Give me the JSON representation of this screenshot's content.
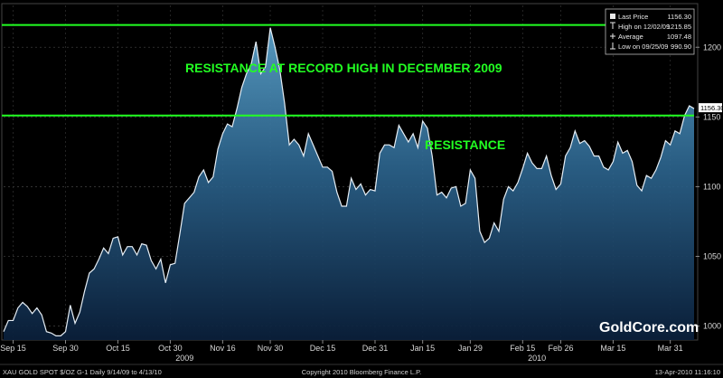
{
  "chart_data": {
    "type": "area",
    "ylim": [
      990,
      1230
    ],
    "yticks": [
      1000,
      1050,
      1100,
      1150,
      1200
    ],
    "x_ticks": [
      {
        "label": "Sep 15",
        "i": 2
      },
      {
        "label": "Sep 30",
        "i": 13
      },
      {
        "label": "Oct 15",
        "i": 24
      },
      {
        "label": "Oct 30",
        "i": 35
      },
      {
        "label": "Nov 16",
        "i": 46
      },
      {
        "label": "Nov 30",
        "i": 56
      },
      {
        "label": "Dec 15",
        "i": 67
      },
      {
        "label": "Dec 31",
        "i": 78
      },
      {
        "label": "Jan 15",
        "i": 88
      },
      {
        "label": "Jan 29",
        "i": 98
      },
      {
        "label": "Feb 15",
        "i": 109
      },
      {
        "label": "Feb 26",
        "i": 117
      },
      {
        "label": "Mar 15",
        "i": 128
      },
      {
        "label": "Mar 31",
        "i": 140
      }
    ],
    "year_labels": [
      {
        "label": "2009",
        "i": 38
      },
      {
        "label": "2010",
        "i": 112
      }
    ],
    "series": [
      {
        "values": [
          996,
          1004,
          1004,
          1013,
          1017,
          1014,
          1009,
          1013,
          1008,
          996,
          995,
          993,
          993,
          996,
          1015,
          1002,
          1010,
          1025,
          1038,
          1041,
          1048,
          1056,
          1052,
          1063,
          1064,
          1051,
          1057,
          1057,
          1051,
          1059,
          1058,
          1047,
          1041,
          1048,
          1031,
          1044,
          1045,
          1066,
          1088,
          1092,
          1096,
          1107,
          1112,
          1103,
          1107,
          1127,
          1138,
          1145,
          1143,
          1156,
          1171,
          1181,
          1188,
          1204,
          1181,
          1186,
          1214,
          1200,
          1184,
          1160,
          1130,
          1134,
          1130,
          1122,
          1138,
          1130,
          1122,
          1114,
          1114,
          1111,
          1096,
          1086,
          1086,
          1106,
          1098,
          1102,
          1094,
          1098,
          1097,
          1124,
          1130,
          1130,
          1128,
          1144,
          1138,
          1132,
          1138,
          1128,
          1147,
          1142,
          1122,
          1094,
          1096,
          1092,
          1099,
          1100,
          1086,
          1088,
          1112,
          1106,
          1068,
          1060,
          1063,
          1074,
          1068,
          1091,
          1100,
          1097,
          1103,
          1113,
          1124,
          1117,
          1113,
          1113,
          1122,
          1108,
          1098,
          1102,
          1122,
          1128,
          1140,
          1131,
          1133,
          1129,
          1122,
          1122,
          1114,
          1112,
          1118,
          1132,
          1124,
          1126,
          1118,
          1101,
          1097,
          1108,
          1106,
          1112,
          1121,
          1133,
          1130,
          1140,
          1138,
          1151,
          1158,
          1156
        ]
      }
    ],
    "resistance_levels": [
      1216,
      1151
    ],
    "annotations": [
      {
        "text": "RESISTANCE   AT RECORD HIGH IN DECEMBER 2009"
      },
      {
        "text": "RESISTANCE"
      }
    ],
    "last_value_tag": "1156.30"
  },
  "legend": {
    "rows": [
      {
        "icon": "square-marker",
        "label": "Last Price",
        "value": "1156.30"
      },
      {
        "icon": "high-marker",
        "label": "High on 12/02/09",
        "value": "1215.85"
      },
      {
        "icon": "average-marker",
        "label": "Average",
        "value": "1097.48"
      },
      {
        "icon": "low-marker",
        "label": "Low on 09/25/09",
        "value": "990.90"
      }
    ]
  },
  "footer": {
    "left": "XAU GOLD SPOT  $/OZ    G-1   Daily  9/14/09 to 4/13/10",
    "center": "Copyright 2010 Bloomberg Finance L.P.",
    "right": "13-Apr-2010 11:16:10"
  },
  "brand": "GoldCore.com",
  "colors": {
    "background": "#000000",
    "area_top": "#5aa0c8",
    "area_bottom": "#0a1f3a",
    "line": "#e6eef5",
    "resistance": "#22ff22"
  }
}
